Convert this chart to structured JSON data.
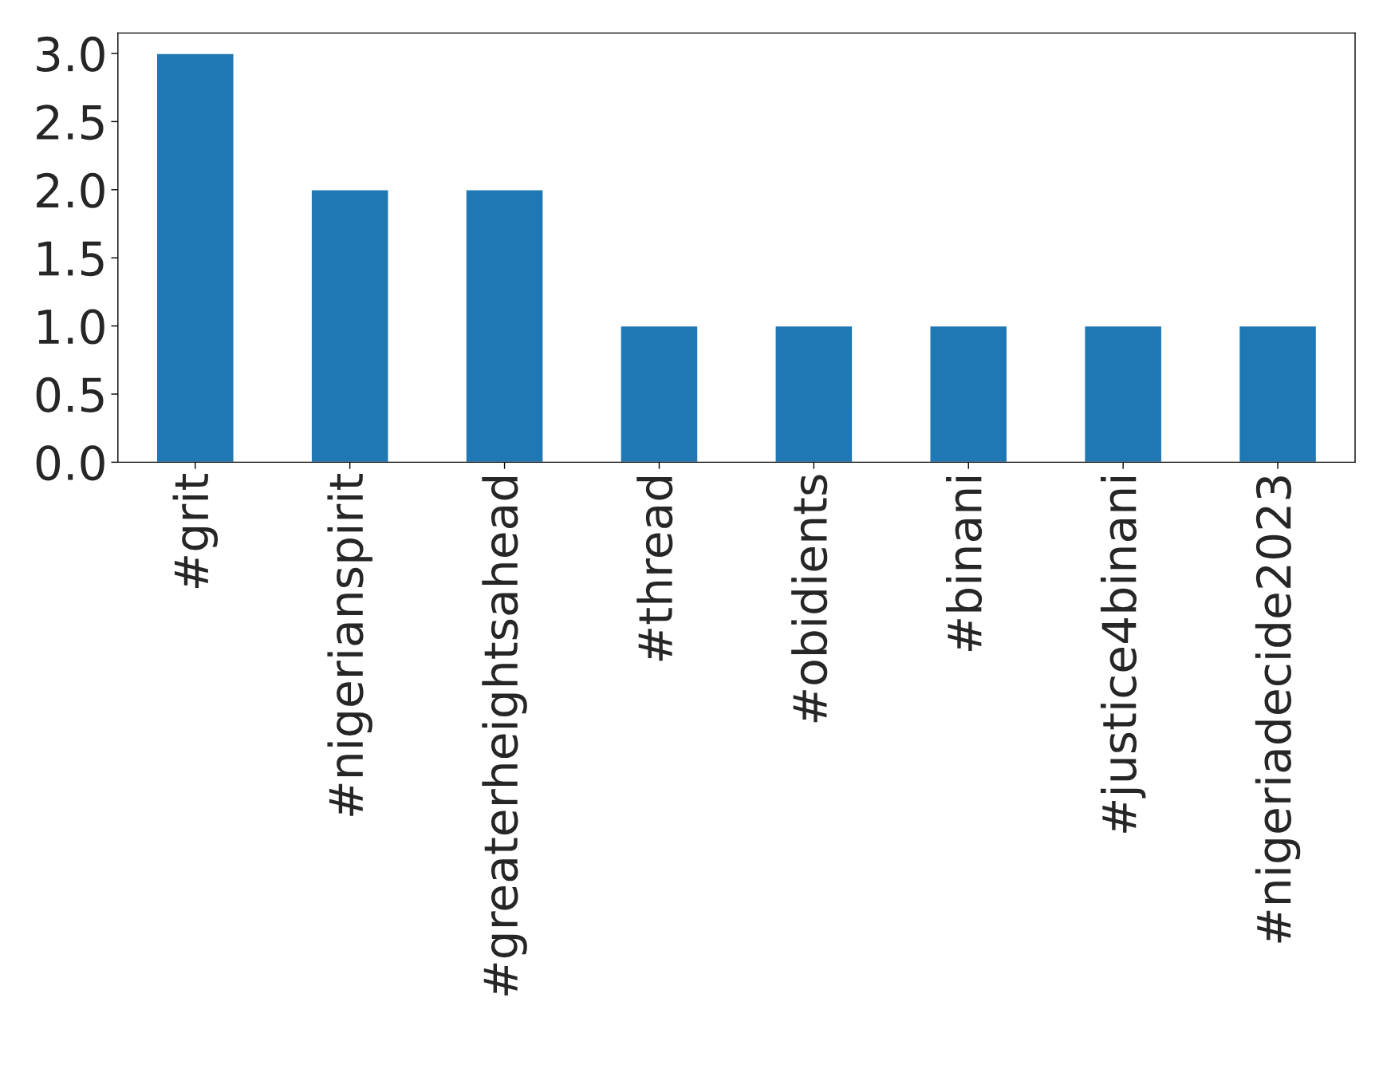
{
  "chart_data": {
    "type": "bar",
    "categories": [
      "#grit",
      "#nigerianspirit",
      "#greaterheightsahead",
      "#thread",
      "#obidients",
      "#binani",
      "#justice4binani",
      "#nigeriadecide2023"
    ],
    "values": [
      3,
      2,
      2,
      1,
      1,
      1,
      1,
      1
    ],
    "color": "#1f77b4",
    "ylim": [
      0,
      3.15
    ],
    "yticks": [
      {
        "value": 0,
        "label": "0.0"
      },
      {
        "value": 0.5,
        "label": "0.5"
      },
      {
        "value": 1,
        "label": "1.0"
      },
      {
        "value": 1.5,
        "label": "1.5"
      },
      {
        "value": 2,
        "label": "2.0"
      },
      {
        "value": 2.5,
        "label": "2.5"
      },
      {
        "value": 3,
        "label": "3.0"
      }
    ],
    "grid": false,
    "legend": false
  }
}
